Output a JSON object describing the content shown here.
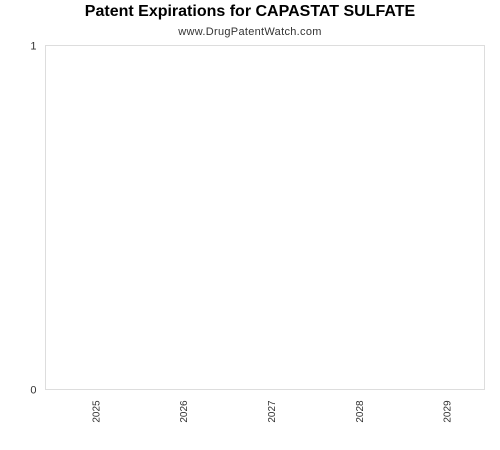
{
  "chart_data": {
    "type": "bar",
    "title": "Patent Expirations for CAPASTAT SULFATE",
    "subtitle": "www.DrugPatentWatch.com",
    "categories": [
      "2025",
      "2026",
      "2027",
      "2028",
      "2029"
    ],
    "series": [
      {
        "values": [
          0,
          0,
          0,
          0,
          0
        ]
      }
    ],
    "xlabel": "",
    "ylabel": "",
    "ylim": [
      0,
      1
    ],
    "yticks": [
      "0",
      "1"
    ],
    "grid": false,
    "legend": "none",
    "colors": {
      "axis": "#dddddd",
      "text": "#333333",
      "bar": "#4a6fa5"
    }
  }
}
